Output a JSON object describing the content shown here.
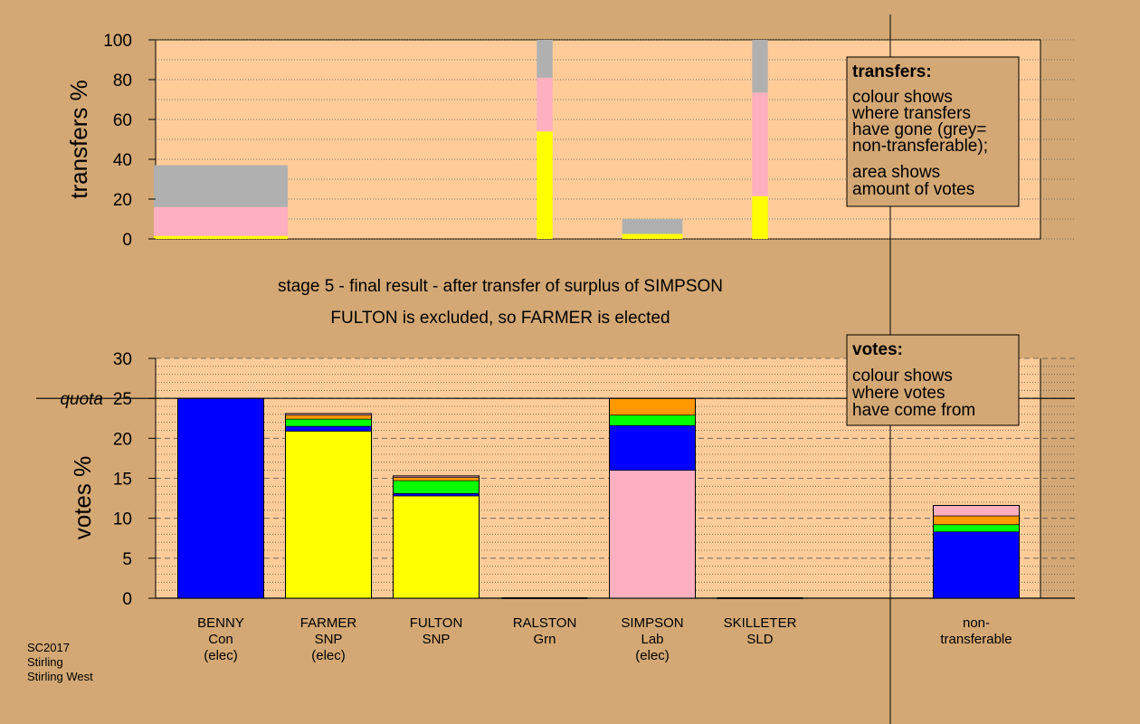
{
  "colors": {
    "background": "#d4a874",
    "plot_background": "#ffcc99",
    "yellow": "#ffff00",
    "pink": "#ffb0c0",
    "grey": "#b0b0b0",
    "blue": "#0000ff",
    "green": "#00ff00",
    "orange": "#ff9900",
    "black": "#000000"
  },
  "titles": {
    "line1": "stage 5 - final result - after transfer of surplus of SIMPSON",
    "line2": "FULTON is excluded, so FARMER is elected"
  },
  "footer": [
    "SC2017",
    "Stirling",
    "Stirling West"
  ],
  "legends": {
    "transfers": {
      "title": "transfers:",
      "lines": [
        "colour shows",
        "where transfers",
        "have gone (grey=",
        "non-transferable);",
        "area shows",
        "amount of votes"
      ]
    },
    "votes": {
      "title": "votes:",
      "lines": [
        "colour shows",
        "where votes",
        "have come from"
      ]
    }
  },
  "chart_data": [
    {
      "type": "bar",
      "name": "transfers",
      "ylabel": "transfers %",
      "ylim": [
        0,
        100
      ],
      "yticks": [
        0,
        20,
        40,
        60,
        80,
        100
      ],
      "grid": true,
      "stack_order": [
        "yellow",
        "pink",
        "grey"
      ],
      "categories": [
        "BENNY",
        "FARMER",
        "FULTON",
        "RALSTON",
        "SIMPSON",
        "SKILLETER"
      ],
      "bars": [
        {
          "candidate": "BENNY",
          "width_votes_pct": 5.1,
          "segments": [
            {
              "color": "yellow",
              "value": 1.5
            },
            {
              "color": "pink",
              "value": 14.5
            },
            {
              "color": "grey",
              "value": 21
            }
          ]
        },
        {
          "candidate": "FARMER",
          "width_votes_pct": 0,
          "segments": []
        },
        {
          "candidate": "FULTON",
          "width_votes_pct": 0,
          "segments": []
        },
        {
          "candidate": "RALSTON",
          "width_votes_pct": 0.6,
          "segments": [
            {
              "color": "yellow",
              "value": 54
            },
            {
              "color": "pink",
              "value": 27
            },
            {
              "color": "grey",
              "value": 19
            }
          ]
        },
        {
          "candidate": "SIMPSON",
          "width_votes_pct": 2.3,
          "segments": [
            {
              "color": "yellow",
              "value": 2.5
            },
            {
              "color": "grey",
              "value": 7.5
            }
          ]
        },
        {
          "candidate": "SKILLETER",
          "width_votes_pct": 0.6,
          "segments": [
            {
              "color": "yellow",
              "value": 21.5
            },
            {
              "color": "pink",
              "value": 52
            },
            {
              "color": "grey",
              "value": 26.5
            }
          ]
        }
      ]
    },
    {
      "type": "bar",
      "name": "votes",
      "ylabel": "votes %",
      "ylim": [
        0,
        30
      ],
      "yticks": [
        0,
        5,
        10,
        15,
        20,
        25,
        30
      ],
      "quota": 25,
      "quota_label": "quota",
      "grid": true,
      "bars": [
        {
          "name": "BENNY",
          "party": "Con",
          "status": "(elec)",
          "segments": [
            {
              "color": "blue",
              "value": 25
            }
          ]
        },
        {
          "name": "FARMER",
          "party": "SNP",
          "status": "(elec)",
          "segments": [
            {
              "color": "yellow",
              "value": 20.9
            },
            {
              "color": "blue",
              "value": 0.6
            },
            {
              "color": "green",
              "value": 0.9
            },
            {
              "color": "orange",
              "value": 0.5
            },
            {
              "color": "pink",
              "value": 0.2
            }
          ]
        },
        {
          "name": "FULTON",
          "party": "SNP",
          "status": "",
          "segments": [
            {
              "color": "yellow",
              "value": 12.8
            },
            {
              "color": "blue",
              "value": 0.3
            },
            {
              "color": "green",
              "value": 1.6
            },
            {
              "color": "orange",
              "value": 0.4
            },
            {
              "color": "pink",
              "value": 0.2
            }
          ]
        },
        {
          "name": "RALSTON",
          "party": "Grn",
          "status": "",
          "segments": []
        },
        {
          "name": "SIMPSON",
          "party": "Lab",
          "status": "(elec)",
          "segments": [
            {
              "color": "pink",
              "value": 16
            },
            {
              "color": "blue",
              "value": 5.6
            },
            {
              "color": "green",
              "value": 1.3
            },
            {
              "color": "orange",
              "value": 2.1
            }
          ]
        },
        {
          "name": "SKILLETER",
          "party": "SLD",
          "status": "",
          "segments": []
        },
        {
          "name": "non-",
          "party": "transferable",
          "status": "",
          "segments": [
            {
              "color": "blue",
              "value": 8.3
            },
            {
              "color": "green",
              "value": 0.9
            },
            {
              "color": "orange",
              "value": 1.1
            },
            {
              "color": "pink",
              "value": 1.3
            }
          ]
        }
      ]
    }
  ]
}
